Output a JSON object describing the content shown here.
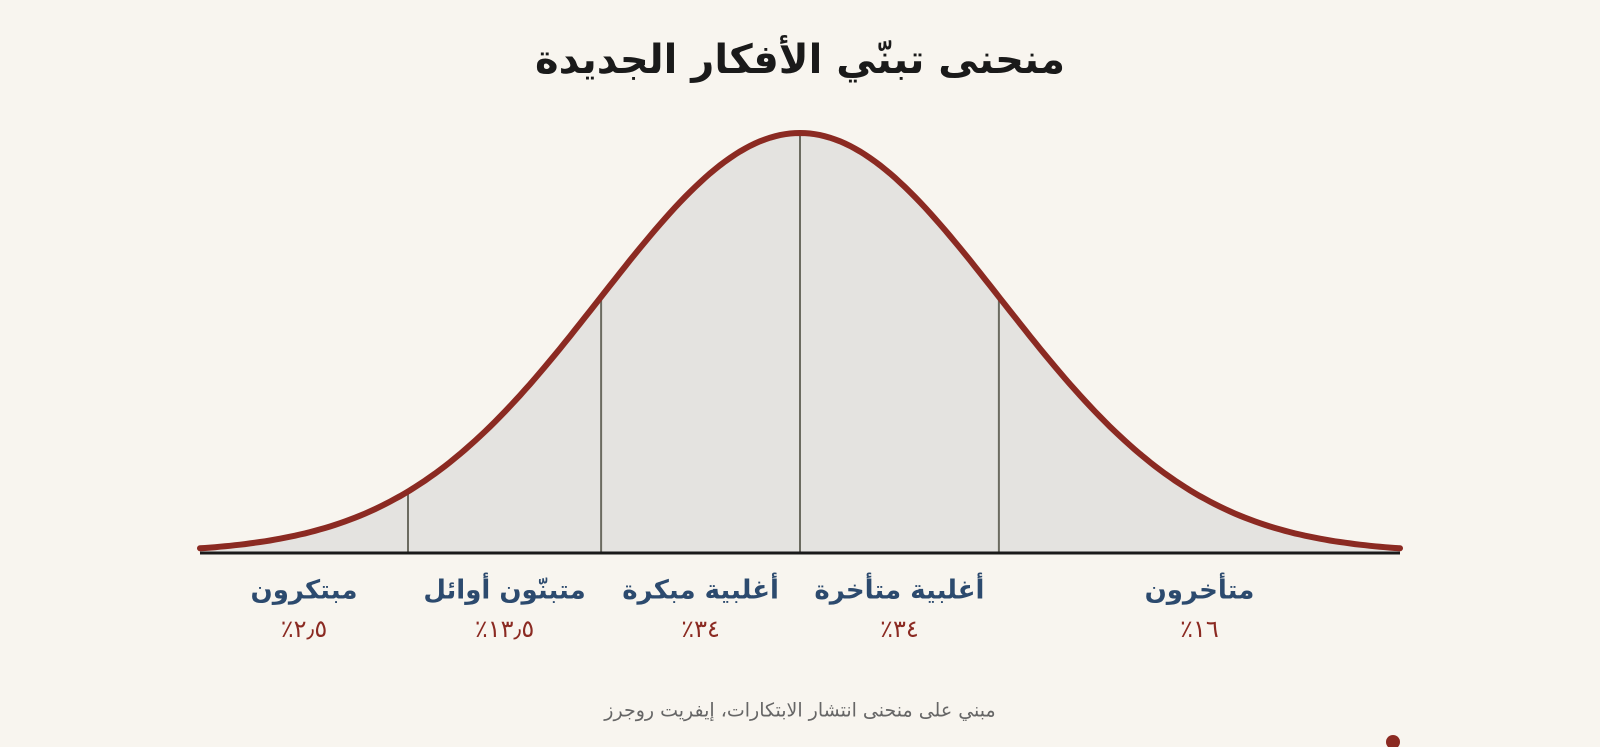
{
  "chart_data": {
    "type": "bell",
    "title": "منحنى تبنّي الأفكار الجديدة",
    "categories": [
      "مبتكرون",
      "متبنّون أوائل",
      "أغلبية مبكرة",
      "أغلبية متأخرة",
      "متأخرون"
    ],
    "values": [
      2.5,
      13.5,
      34,
      34,
      16
    ],
    "value_labels": [
      "٪٢٫٥",
      "٪١٣٫٥",
      "٪٣٤",
      "٪٣٤",
      "٪١٦"
    ],
    "color": "#8b2a22",
    "note": "مبني على منحنى انتشار الابتكارات، إيفريت روجرز"
  }
}
